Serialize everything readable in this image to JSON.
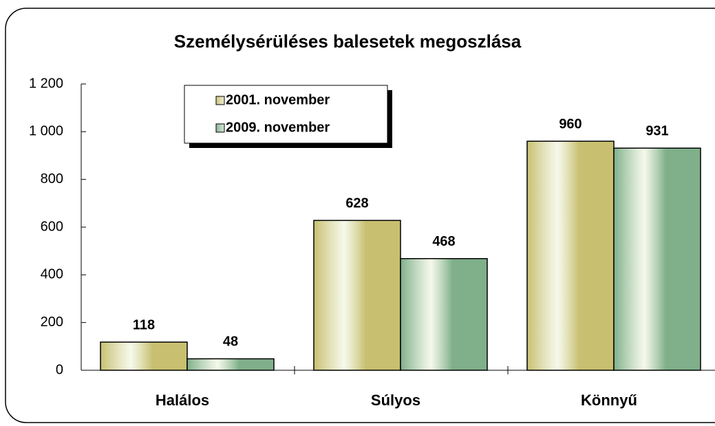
{
  "chart_data": {
    "type": "bar",
    "title": "Személysérüléses balesetek megoszlása",
    "categories": [
      "Halálos",
      "Súlyos",
      "Könnyű"
    ],
    "series": [
      {
        "name": "2001. november",
        "color": "#c8c070",
        "values": [
          118,
          628,
          960
        ]
      },
      {
        "name": "2009. november",
        "color": "#7fb08a",
        "values": [
          48,
          468,
          931
        ]
      }
    ],
    "ylim": [
      0,
      1200
    ],
    "yticks": [
      0,
      200,
      400,
      600,
      800,
      {
        "value": 1000,
        "label": "1 000"
      },
      {
        "value": 1200,
        "label": "1 200"
      }
    ],
    "grid": false
  }
}
